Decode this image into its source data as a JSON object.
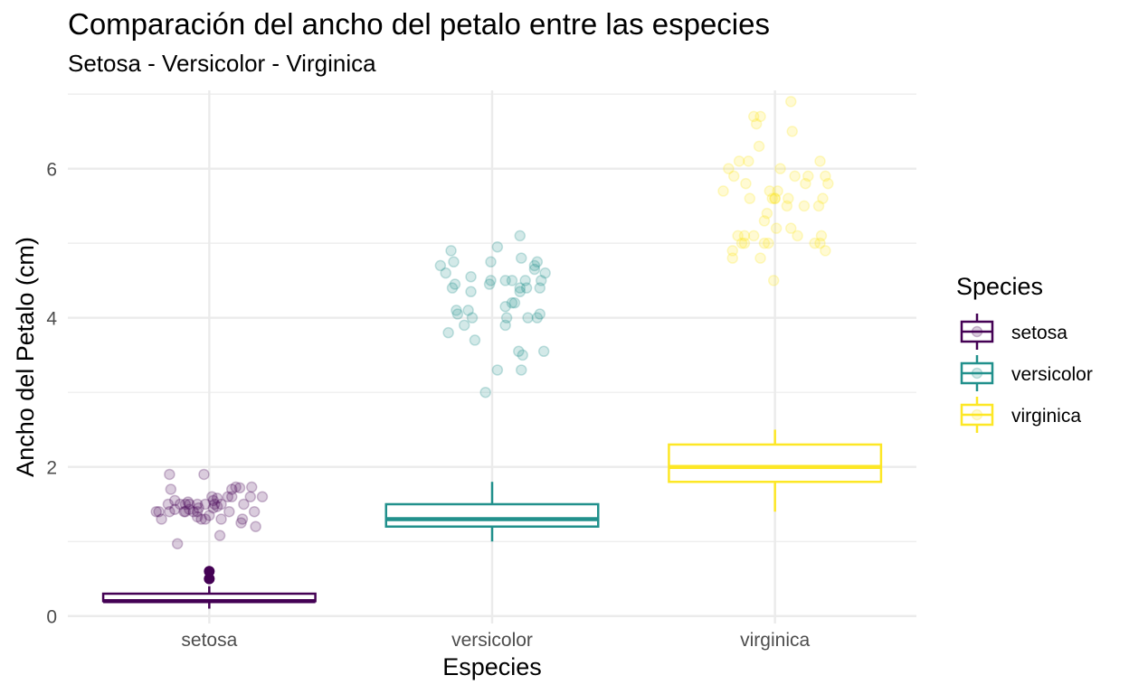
{
  "chart_data": {
    "type": "boxplot",
    "title": "Comparación del ancho del petalo entre las especies",
    "subtitle": "Setosa - Versicolor - Virginica",
    "xlabel": "Especies",
    "ylabel": "Ancho del Petalo (cm)",
    "categories": [
      "setosa",
      "versicolor",
      "virginica"
    ],
    "ylim": [
      -0.1,
      7.05
    ],
    "yticks": [
      0,
      2,
      4,
      6
    ],
    "grid": true,
    "legend": {
      "title": "Species",
      "position": "right",
      "entries": [
        "setosa",
        "versicolor",
        "virginica"
      ]
    },
    "colors": {
      "setosa": "#440154",
      "versicolor": "#21908C",
      "virginica": "#FDE725"
    },
    "boxes": [
      {
        "category": "setosa",
        "min": 0.1,
        "q1": 0.2,
        "median": 0.2,
        "q3": 0.3,
        "max": 0.4,
        "outliers": [
          0.5,
          0.6
        ]
      },
      {
        "category": "versicolor",
        "min": 1.0,
        "q1": 1.2,
        "median": 1.3,
        "q3": 1.5,
        "max": 1.8,
        "outliers": []
      },
      {
        "category": "virginica",
        "min": 1.4,
        "q1": 1.8,
        "median": 2.0,
        "q3": 2.3,
        "max": 2.5,
        "outliers": []
      }
    ],
    "points": [
      {
        "category": "setosa",
        "x": [
          -0.4,
          -0.38,
          -0.36,
          -0.31,
          -0.3,
          -0.3,
          -0.29,
          -0.26,
          -0.26,
          -0.24,
          -0.22,
          -0.19,
          -0.18,
          -0.18,
          -0.16,
          -0.15,
          -0.15,
          -0.12,
          -0.09,
          -0.09,
          -0.09,
          -0.08,
          -0.06,
          -0.04,
          -0.03,
          -0.03,
          0,
          0.02,
          0.03,
          0.03,
          0.04,
          0.06,
          0.06,
          0.08,
          0.09,
          0.09,
          0.14,
          0.15,
          0.17,
          0.17,
          0.2,
          0.23,
          0.24,
          0.25,
          0.26,
          0.31,
          0.32,
          0.34,
          0.35,
          0.4
        ],
        "y": [
          1.4,
          1.4,
          1.3,
          1.5,
          1.4,
          1.9,
          1.7,
          1.55,
          1.43,
          0.97,
          1.5,
          1.4,
          1.5,
          1.4,
          1.53,
          1.5,
          1.43,
          1.4,
          1.5,
          1.4,
          1.33,
          1.45,
          1.3,
          1.9,
          1.5,
          1.3,
          1.35,
          1.6,
          1.45,
          1.55,
          1.5,
          1.58,
          1.47,
          1.08,
          1.3,
          1.5,
          1.6,
          1.4,
          1.6,
          1.7,
          1.73,
          1.72,
          1.25,
          1.3,
          1.5,
          1.6,
          1.73,
          1.4,
          1.2,
          1.6
        ]
      },
      {
        "category": "versicolor",
        "x": [
          -0.39,
          -0.35,
          -0.33,
          -0.31,
          -0.3,
          -0.29,
          -0.28,
          -0.27,
          -0.26,
          -0.21,
          -0.18,
          -0.16,
          -0.16,
          -0.15,
          -0.13,
          -0.05,
          -0.02,
          -0.01,
          -0.01,
          0.04,
          0.04,
          0.1,
          0.1,
          0.1,
          0.11,
          0.15,
          0.15,
          0.17,
          0.2,
          0.21,
          0.21,
          0.21,
          0.22,
          0.22,
          0.23,
          0.25,
          0.26,
          0.27,
          0.32,
          0.32,
          0.34,
          0.34,
          0.36,
          0.36,
          0.37,
          0.39,
          0.4
        ],
        "y": [
          4.7,
          4.6,
          3.8,
          4.9,
          4.4,
          4.75,
          4.45,
          4.1,
          4.05,
          3.9,
          4.1,
          4.55,
          4.35,
          4.0,
          3.7,
          3.0,
          4.45,
          4.75,
          4.5,
          4.95,
          3.3,
          3.9,
          4.5,
          4.15,
          4.0,
          4.5,
          4.2,
          4.2,
          3.55,
          5.1,
          4.35,
          4.4,
          4.8,
          3.3,
          3.5,
          4.5,
          4.4,
          4.0,
          4.7,
          4.65,
          4.0,
          4.75,
          4.4,
          4.05,
          4.5,
          3.55,
          4.6
        ]
      },
      {
        "category": "virginica",
        "x": [
          -0.39,
          -0.35,
          -0.32,
          -0.32,
          -0.31,
          -0.28,
          -0.27,
          -0.25,
          -0.23,
          -0.23,
          -0.22,
          -0.2,
          -0.19,
          -0.16,
          -0.16,
          -0.14,
          -0.12,
          -0.11,
          -0.11,
          -0.08,
          -0.08,
          -0.06,
          -0.05,
          -0.04,
          -0.02,
          -0.01,
          0,
          0,
          0.01,
          0.02,
          0.04,
          0.09,
          0.1,
          0.12,
          0.12,
          0.13,
          0.15,
          0.17,
          0.22,
          0.23,
          0.25,
          0.3,
          0.33,
          0.34,
          0.34,
          0.35,
          0.36,
          0.38,
          0.38,
          0.4
        ],
        "y": [
          5.7,
          6.0,
          4.9,
          4.8,
          5.9,
          5.1,
          6.1,
          5.0,
          5.1,
          5.0,
          5.8,
          6.1,
          5.6,
          6.7,
          5.1,
          6.6,
          6.3,
          6.7,
          4.8,
          5.3,
          5.0,
          5.4,
          5.0,
          5.7,
          5.6,
          4.5,
          5.6,
          5.6,
          5.2,
          5.7,
          6.0,
          5.5,
          5.6,
          5.2,
          6.9,
          6.5,
          5.9,
          5.1,
          5.5,
          5.8,
          5.9,
          5.0,
          5.5,
          6.1,
          5.0,
          5.1,
          5.6,
          5.9,
          4.9,
          5.8
        ]
      }
    ]
  }
}
